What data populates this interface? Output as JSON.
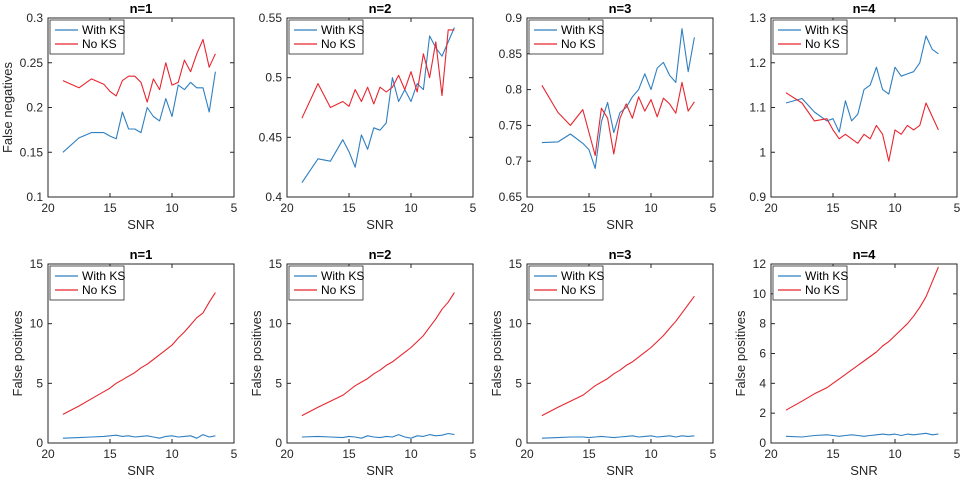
{
  "colors": {
    "with_ks": "#2f7fc1",
    "no_ks": "#e8252f",
    "axis": "#262626"
  },
  "chart_data": [
    {
      "type": "line",
      "title": "n=1",
      "xlabel": "SNR",
      "ylabel": "False negatives",
      "xlim": [
        20,
        5
      ],
      "ylim": [
        0.1,
        0.3
      ],
      "xticks": [
        20,
        15,
        10,
        5
      ],
      "yticks": [
        0.1,
        0.15,
        0.2,
        0.25,
        0.3
      ],
      "ytick_labels": [
        "0.1",
        "0.15",
        "0.2",
        "0.25",
        "0.3"
      ],
      "legend": [
        "With KS",
        "No KS"
      ],
      "series": [
        {
          "name": "With KS",
          "x": [
            18.8,
            17.5,
            16.5,
            15.5,
            15,
            14.5,
            14,
            13.5,
            13,
            12.5,
            12,
            11.5,
            11,
            10.5,
            10,
            9.5,
            9,
            8.5,
            8,
            7.5,
            7,
            6.5
          ],
          "y": [
            0.15,
            0.166,
            0.172,
            0.172,
            0.168,
            0.165,
            0.195,
            0.176,
            0.176,
            0.172,
            0.2,
            0.19,
            0.185,
            0.21,
            0.19,
            0.225,
            0.22,
            0.228,
            0.222,
            0.222,
            0.195,
            0.24
          ]
        },
        {
          "name": "No KS",
          "x": [
            18.8,
            17.5,
            16.5,
            15.5,
            15,
            14.5,
            14,
            13.5,
            13,
            12.5,
            12,
            11.5,
            11,
            10.5,
            10,
            9.5,
            9,
            8.5,
            8,
            7.5,
            7,
            6.5
          ],
          "y": [
            0.23,
            0.222,
            0.232,
            0.226,
            0.218,
            0.213,
            0.23,
            0.235,
            0.235,
            0.228,
            0.206,
            0.232,
            0.22,
            0.25,
            0.225,
            0.228,
            0.253,
            0.24,
            0.26,
            0.276,
            0.245,
            0.26
          ]
        }
      ]
    },
    {
      "type": "line",
      "title": "n=2",
      "xlabel": "SNR",
      "ylabel": "",
      "xlim": [
        20,
        5
      ],
      "ylim": [
        0.4,
        0.55
      ],
      "xticks": [
        20,
        15,
        10,
        5
      ],
      "yticks": [
        0.4,
        0.45,
        0.5,
        0.55
      ],
      "ytick_labels": [
        "0.4",
        "0.45",
        "0.5",
        "0.55"
      ],
      "legend": [
        "With KS",
        "No KS"
      ],
      "series": [
        {
          "name": "With KS",
          "x": [
            18.8,
            17.5,
            16.5,
            15.5,
            15,
            14.5,
            14,
            13.5,
            13,
            12.5,
            12,
            11.5,
            11,
            10.5,
            10,
            9.5,
            9,
            8.5,
            8,
            7.5,
            7,
            6.5
          ],
          "y": [
            0.412,
            0.432,
            0.43,
            0.448,
            0.438,
            0.425,
            0.452,
            0.44,
            0.458,
            0.456,
            0.462,
            0.5,
            0.48,
            0.49,
            0.48,
            0.495,
            0.49,
            0.535,
            0.525,
            0.518,
            0.53,
            0.542
          ]
        },
        {
          "name": "No KS",
          "x": [
            18.8,
            17.5,
            16.5,
            15.5,
            15,
            14.5,
            14,
            13.5,
            13,
            12.5,
            12,
            11.5,
            11,
            10.5,
            10,
            9.5,
            9,
            8.5,
            8,
            7.5,
            7,
            6.5
          ],
          "y": [
            0.466,
            0.495,
            0.475,
            0.48,
            0.476,
            0.49,
            0.48,
            0.492,
            0.478,
            0.492,
            0.488,
            0.492,
            0.502,
            0.49,
            0.505,
            0.488,
            0.52,
            0.5,
            0.53,
            0.485,
            0.54,
            0.54
          ]
        }
      ]
    },
    {
      "type": "line",
      "title": "n=3",
      "xlabel": "SNR",
      "ylabel": "",
      "xlim": [
        20,
        5
      ],
      "ylim": [
        0.65,
        0.9
      ],
      "xticks": [
        20,
        15,
        10,
        5
      ],
      "yticks": [
        0.65,
        0.7,
        0.75,
        0.8,
        0.85,
        0.9
      ],
      "ytick_labels": [
        "0.65",
        "0.7",
        "0.75",
        "0.8",
        "0.85",
        "0.9"
      ],
      "legend": [
        "With KS",
        "No KS"
      ],
      "series": [
        {
          "name": "With KS",
          "x": [
            18.8,
            17.5,
            16.5,
            15.5,
            15,
            14.5,
            14,
            13.5,
            13,
            12.5,
            12,
            11.5,
            11,
            10.5,
            10,
            9.5,
            9,
            8.5,
            8,
            7.5,
            7,
            6.5
          ],
          "y": [
            0.726,
            0.727,
            0.738,
            0.725,
            0.716,
            0.69,
            0.755,
            0.782,
            0.74,
            0.768,
            0.775,
            0.79,
            0.8,
            0.822,
            0.8,
            0.83,
            0.838,
            0.82,
            0.81,
            0.885,
            0.825,
            0.873
          ]
        },
        {
          "name": "No KS",
          "x": [
            18.8,
            17.5,
            16.5,
            15.5,
            15,
            14.5,
            14,
            13.5,
            13,
            12.5,
            12,
            11.5,
            11,
            10.5,
            10,
            9.5,
            9,
            8.5,
            8,
            7.5,
            7,
            6.5
          ],
          "y": [
            0.806,
            0.768,
            0.75,
            0.772,
            0.74,
            0.708,
            0.774,
            0.76,
            0.71,
            0.76,
            0.78,
            0.76,
            0.79,
            0.77,
            0.786,
            0.762,
            0.788,
            0.78,
            0.767,
            0.81,
            0.77,
            0.783
          ]
        }
      ]
    },
    {
      "type": "line",
      "title": "n=4",
      "xlabel": "SNR",
      "ylabel": "",
      "xlim": [
        20,
        5
      ],
      "ylim": [
        0.9,
        1.3
      ],
      "xticks": [
        20,
        15,
        10,
        5
      ],
      "yticks": [
        0.9,
        1.0,
        1.1,
        1.2,
        1.3
      ],
      "ytick_labels": [
        "0.9",
        "1",
        "1.1",
        "1.2",
        "1.3"
      ],
      "legend": [
        "With KS",
        "No KS"
      ],
      "series": [
        {
          "name": "With KS",
          "x": [
            18.8,
            17.5,
            16.5,
            15.5,
            15,
            14.5,
            14,
            13.5,
            13,
            12.5,
            12,
            11.5,
            11,
            10.5,
            10,
            9.5,
            9,
            8.5,
            8,
            7.5,
            7,
            6.5
          ],
          "y": [
            1.11,
            1.12,
            1.09,
            1.07,
            1.075,
            1.045,
            1.115,
            1.07,
            1.085,
            1.14,
            1.15,
            1.19,
            1.14,
            1.13,
            1.19,
            1.17,
            1.175,
            1.18,
            1.2,
            1.26,
            1.23,
            1.22
          ]
        },
        {
          "name": "No KS",
          "x": [
            18.8,
            17.5,
            16.5,
            15.5,
            15,
            14.5,
            14,
            13.5,
            13,
            12.5,
            12,
            11.5,
            11,
            10.5,
            10,
            9.5,
            9,
            8.5,
            8,
            7.5,
            7,
            6.5
          ],
          "y": [
            1.133,
            1.11,
            1.07,
            1.075,
            1.05,
            1.03,
            1.04,
            1.03,
            1.02,
            1.04,
            1.03,
            1.06,
            1.04,
            0.98,
            1.05,
            1.04,
            1.06,
            1.05,
            1.06,
            1.11,
            1.08,
            1.05
          ]
        }
      ]
    },
    {
      "type": "line",
      "title": "n=1",
      "xlabel": "SNR",
      "ylabel": "False positives",
      "xlim": [
        20,
        5
      ],
      "ylim": [
        0,
        15
      ],
      "xticks": [
        20,
        15,
        10,
        5
      ],
      "yticks": [
        0,
        5,
        10,
        15
      ],
      "ytick_labels": [
        "0",
        "5",
        "10",
        "15"
      ],
      "legend": [
        "With KS",
        "No KS"
      ],
      "series": [
        {
          "name": "With KS",
          "x": [
            18.8,
            17.5,
            16.5,
            15.5,
            15,
            14.5,
            14,
            13.5,
            13,
            12.5,
            12,
            11.5,
            11,
            10.5,
            10,
            9.5,
            9,
            8.5,
            8,
            7.5,
            7,
            6.5
          ],
          "y": [
            0.4,
            0.45,
            0.5,
            0.55,
            0.6,
            0.65,
            0.55,
            0.6,
            0.5,
            0.55,
            0.6,
            0.5,
            0.4,
            0.55,
            0.6,
            0.5,
            0.55,
            0.6,
            0.4,
            0.7,
            0.5,
            0.6
          ]
        },
        {
          "name": "No KS",
          "x": [
            18.8,
            17.5,
            16.5,
            15.5,
            15,
            14.5,
            14,
            13.5,
            13,
            12.5,
            12,
            11.5,
            11,
            10.5,
            10,
            9.5,
            9,
            8.5,
            8,
            7.5,
            7,
            6.5
          ],
          "y": [
            2.4,
            3.1,
            3.7,
            4.3,
            4.6,
            5.0,
            5.3,
            5.6,
            5.9,
            6.3,
            6.6,
            7.0,
            7.4,
            7.8,
            8.2,
            8.8,
            9.3,
            9.9,
            10.5,
            10.9,
            11.8,
            12.6
          ]
        }
      ]
    },
    {
      "type": "line",
      "title": "n=2",
      "xlabel": "SNR",
      "ylabel": "False positives",
      "xlim": [
        20,
        5
      ],
      "ylim": [
        0,
        15
      ],
      "xticks": [
        20,
        15,
        10,
        5
      ],
      "yticks": [
        0,
        5,
        10,
        15
      ],
      "ytick_labels": [
        "0",
        "5",
        "10",
        "15"
      ],
      "legend": [
        "With KS",
        "No KS"
      ],
      "series": [
        {
          "name": "With KS",
          "x": [
            18.8,
            17.5,
            16.5,
            15.5,
            15,
            14.5,
            14,
            13.5,
            13,
            12.5,
            12,
            11.5,
            11,
            10.5,
            10,
            9.5,
            9,
            8.5,
            8,
            7.5,
            7,
            6.5
          ],
          "y": [
            0.5,
            0.55,
            0.5,
            0.45,
            0.55,
            0.5,
            0.4,
            0.6,
            0.5,
            0.45,
            0.55,
            0.5,
            0.7,
            0.5,
            0.4,
            0.6,
            0.55,
            0.7,
            0.6,
            0.65,
            0.8,
            0.7
          ]
        },
        {
          "name": "No KS",
          "x": [
            18.8,
            17.5,
            16.5,
            15.5,
            15,
            14.5,
            14,
            13.5,
            13,
            12.5,
            12,
            11.5,
            11,
            10.5,
            10,
            9.5,
            9,
            8.5,
            8,
            7.5,
            7,
            6.5
          ],
          "y": [
            2.3,
            3.0,
            3.5,
            4.0,
            4.4,
            4.8,
            5.1,
            5.4,
            5.8,
            6.1,
            6.5,
            6.8,
            7.2,
            7.6,
            8.0,
            8.5,
            9.0,
            9.7,
            10.4,
            11.2,
            11.8,
            12.6
          ]
        }
      ]
    },
    {
      "type": "line",
      "title": "n=3",
      "xlabel": "SNR",
      "ylabel": "False positives",
      "xlim": [
        20,
        5
      ],
      "ylim": [
        0,
        15
      ],
      "xticks": [
        20,
        15,
        10,
        5
      ],
      "yticks": [
        0,
        5,
        10,
        15
      ],
      "ytick_labels": [
        "0",
        "5",
        "10",
        "15"
      ],
      "legend": [
        "With KS",
        "No KS"
      ],
      "series": [
        {
          "name": "With KS",
          "x": [
            18.8,
            17.5,
            16.5,
            15.5,
            15,
            14.5,
            14,
            13.5,
            13,
            12.5,
            12,
            11.5,
            11,
            10.5,
            10,
            9.5,
            9,
            8.5,
            8,
            7.5,
            7,
            6.5
          ],
          "y": [
            0.4,
            0.45,
            0.5,
            0.5,
            0.45,
            0.5,
            0.55,
            0.5,
            0.45,
            0.5,
            0.55,
            0.6,
            0.5,
            0.55,
            0.6,
            0.5,
            0.55,
            0.6,
            0.5,
            0.6,
            0.55,
            0.6
          ]
        },
        {
          "name": "No KS",
          "x": [
            18.8,
            17.5,
            16.5,
            15.5,
            15,
            14.5,
            14,
            13.5,
            13,
            12.5,
            12,
            11.5,
            11,
            10.5,
            10,
            9.5,
            9,
            8.5,
            8,
            7.5,
            7,
            6.5
          ],
          "y": [
            2.3,
            3.0,
            3.5,
            4.0,
            4.4,
            4.8,
            5.1,
            5.4,
            5.8,
            6.1,
            6.5,
            6.8,
            7.2,
            7.6,
            8.0,
            8.5,
            9.0,
            9.6,
            10.2,
            10.9,
            11.6,
            12.3
          ]
        }
      ]
    },
    {
      "type": "line",
      "title": "n=4",
      "xlabel": "SNR",
      "ylabel": "False positives",
      "xlim": [
        20,
        5
      ],
      "ylim": [
        0,
        12
      ],
      "xticks": [
        20,
        15,
        10,
        5
      ],
      "yticks": [
        0,
        2,
        4,
        6,
        8,
        10,
        12
      ],
      "ytick_labels": [
        "0",
        "2",
        "4",
        "6",
        "8",
        "10",
        "12"
      ],
      "legend": [
        "With KS",
        "No KS"
      ],
      "series": [
        {
          "name": "With KS",
          "x": [
            18.8,
            17.5,
            16.5,
            15.5,
            15,
            14.5,
            14,
            13.5,
            13,
            12.5,
            12,
            11.5,
            11,
            10.5,
            10,
            9.5,
            9,
            8.5,
            8,
            7.5,
            7,
            6.5
          ],
          "y": [
            0.45,
            0.4,
            0.5,
            0.55,
            0.5,
            0.45,
            0.5,
            0.55,
            0.5,
            0.45,
            0.5,
            0.55,
            0.6,
            0.55,
            0.6,
            0.5,
            0.6,
            0.55,
            0.6,
            0.65,
            0.55,
            0.6
          ]
        },
        {
          "name": "No KS",
          "x": [
            18.8,
            17.5,
            16.5,
            15.5,
            15,
            14.5,
            14,
            13.5,
            13,
            12.5,
            12,
            11.5,
            11,
            10.5,
            10,
            9.5,
            9,
            8.5,
            8,
            7.5,
            7,
            6.5
          ],
          "y": [
            2.2,
            2.8,
            3.3,
            3.7,
            4.0,
            4.3,
            4.6,
            4.9,
            5.2,
            5.5,
            5.8,
            6.1,
            6.5,
            6.8,
            7.2,
            7.6,
            8.0,
            8.5,
            9.1,
            9.8,
            10.8,
            11.8
          ]
        }
      ]
    }
  ]
}
